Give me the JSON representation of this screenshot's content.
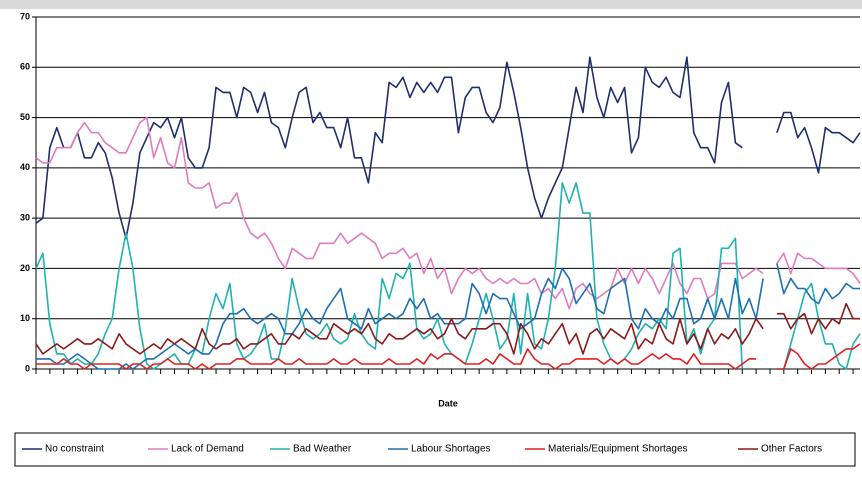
{
  "chart_data": {
    "type": "line",
    "x_label": "Date",
    "categories": [
      null,
      null,
      null,
      null,
      null,
      null,
      null,
      null,
      null,
      null,
      null,
      null,
      null,
      null,
      null,
      null,
      null,
      null,
      null,
      null,
      null,
      null,
      null,
      null,
      null,
      null,
      null,
      null,
      null,
      null,
      null,
      null,
      null,
      null,
      null,
      null,
      null,
      null,
      null,
      null,
      null,
      null,
      null,
      null,
      null,
      null,
      null,
      null,
      null,
      null,
      null,
      null,
      null,
      null,
      null,
      null,
      null,
      null,
      null,
      null,
      null,
      null,
      null,
      null,
      null,
      null,
      null,
      null,
      null,
      null,
      null,
      null,
      null,
      null,
      null,
      null,
      null,
      null,
      null,
      null,
      null,
      null,
      null,
      null,
      null,
      null,
      null,
      null,
      null,
      null,
      null,
      null,
      null,
      null,
      null,
      null,
      null,
      null,
      null,
      null,
      null,
      null,
      null,
      null,
      null,
      null,
      null,
      null,
      null,
      null,
      null,
      null,
      null,
      null,
      null,
      null,
      null,
      null,
      null,
      null
    ],
    "ylim": [
      0,
      70
    ],
    "yticks": [
      0,
      10,
      20,
      30,
      40,
      50,
      60,
      70
    ],
    "grid": true,
    "legend": "bottom",
    "series": [
      {
        "name": "No constraint",
        "color": "#1f2f6e",
        "values": [
          29,
          30,
          44,
          48,
          44,
          44,
          47,
          42,
          42,
          45,
          43,
          38,
          31,
          26,
          33,
          43,
          46,
          49,
          48,
          50,
          46,
          50,
          42,
          40,
          40,
          44,
          56,
          55,
          55,
          50,
          56,
          55,
          51,
          55,
          49,
          48,
          44,
          50,
          55,
          56,
          49,
          51,
          48,
          48,
          44,
          50,
          42,
          42,
          37,
          47,
          45,
          57,
          56,
          58,
          54,
          57,
          55,
          57,
          55,
          58,
          58,
          47,
          54,
          56,
          56,
          51,
          49,
          52,
          61,
          55,
          48,
          40,
          34,
          30,
          34,
          37,
          40,
          48,
          56,
          51,
          62,
          54,
          50,
          56,
          53,
          56,
          43,
          46,
          60,
          57,
          56,
          58,
          55,
          54,
          62,
          47,
          44,
          44,
          41,
          53,
          57,
          45,
          44,
          null,
          null,
          null,
          null,
          47,
          51,
          51,
          46,
          48,
          44,
          39,
          48,
          47,
          47,
          46,
          45,
          47
        ]
      },
      {
        "name": "Lack of Demand",
        "color": "#e07cc0",
        "values": [
          42,
          41,
          41,
          44,
          44,
          44,
          47,
          49,
          47,
          47,
          45,
          44,
          43,
          43,
          46,
          49,
          50,
          42,
          46,
          41,
          40,
          46,
          37,
          36,
          36,
          37,
          32,
          33,
          33,
          35,
          30,
          27,
          26,
          27,
          25,
          22,
          20,
          24,
          23,
          22,
          22,
          25,
          25,
          25,
          27,
          25,
          26,
          27,
          26,
          25,
          22,
          23,
          23,
          24,
          22,
          23,
          19,
          22,
          18,
          20,
          15,
          18,
          20,
          19,
          20,
          18,
          17,
          18,
          17,
          18,
          17,
          17,
          18,
          15,
          16,
          14,
          16,
          12,
          16,
          17,
          15,
          14,
          15,
          16,
          20,
          17,
          20,
          17,
          20,
          18,
          15,
          18,
          21,
          17,
          15,
          18,
          18,
          14,
          15,
          21,
          21,
          21,
          18,
          19,
          20,
          19,
          null,
          21,
          23,
          19,
          23,
          22,
          22,
          21,
          20,
          20,
          20,
          20,
          19,
          17
        ]
      },
      {
        "name": "Bad Weather",
        "color": "#20b2b2",
        "values": [
          20,
          23,
          9,
          3,
          3,
          1,
          2,
          1,
          1,
          3,
          7,
          10,
          20,
          27,
          20,
          8,
          1,
          0,
          1,
          2,
          3,
          1,
          1,
          4,
          3,
          10,
          15,
          12,
          17,
          5,
          2,
          3,
          5,
          9,
          2,
          2,
          8,
          18,
          12,
          7,
          6,
          7,
          9,
          6,
          5,
          6,
          11,
          7,
          5,
          4,
          18,
          14,
          19,
          18,
          21,
          8,
          6,
          7,
          10,
          5,
          3,
          2,
          1,
          5,
          10,
          15,
          10,
          4,
          6,
          15,
          3,
          15,
          5,
          4,
          10,
          20,
          37,
          33,
          37,
          31,
          31,
          10,
          5,
          2,
          1,
          2,
          4,
          7,
          9,
          8,
          10,
          8,
          23,
          24,
          5,
          8,
          3,
          8,
          10,
          24,
          24,
          26,
          0,
          null,
          null,
          null,
          null,
          0,
          0,
          5,
          10,
          15,
          17,
          10,
          5,
          5,
          1,
          0,
          5,
          7
        ]
      },
      {
        "name": "Labour Shortages",
        "color": "#1f6fb4",
        "values": [
          2,
          2,
          2,
          1,
          1,
          2,
          3,
          2,
          1,
          0,
          0,
          0,
          0,
          1,
          0,
          1,
          2,
          2,
          3,
          4,
          5,
          4,
          3,
          4,
          3,
          3,
          5,
          9,
          11,
          11,
          12,
          10,
          9,
          10,
          11,
          10,
          7,
          7,
          9,
          12,
          10,
          9,
          12,
          14,
          16,
          10,
          9,
          8,
          12,
          9,
          10,
          11,
          10,
          11,
          14,
          12,
          14,
          10,
          11,
          9,
          9,
          9,
          10,
          17,
          15,
          11,
          15,
          14,
          14,
          11,
          8,
          9,
          10,
          15,
          18,
          16,
          20,
          18,
          13,
          15,
          17,
          12,
          11,
          16,
          17,
          18,
          10,
          8,
          12,
          10,
          9,
          12,
          10,
          14,
          14,
          9,
          10,
          14,
          10,
          14,
          10,
          18,
          11,
          14,
          10,
          18,
          null,
          21,
          15,
          18,
          16,
          16,
          14,
          13,
          16,
          14,
          15,
          17,
          16,
          16
        ]
      },
      {
        "name": "Materials/Equipment Shortages",
        "color": "#e02020",
        "values": [
          1,
          1,
          1,
          1,
          2,
          1,
          1,
          0,
          1,
          1,
          1,
          1,
          1,
          0,
          1,
          1,
          0,
          1,
          1,
          2,
          1,
          1,
          1,
          0,
          1,
          0,
          1,
          1,
          1,
          2,
          2,
          1,
          1,
          1,
          1,
          2,
          1,
          1,
          2,
          1,
          1,
          1,
          1,
          2,
          1,
          1,
          2,
          1,
          1,
          1,
          1,
          2,
          1,
          1,
          1,
          2,
          1,
          3,
          2,
          3,
          3,
          2,
          1,
          1,
          1,
          2,
          1,
          3,
          2,
          1,
          1,
          4,
          2,
          1,
          1,
          0,
          1,
          1,
          2,
          2,
          2,
          2,
          1,
          2,
          1,
          2,
          1,
          1,
          2,
          3,
          2,
          3,
          2,
          2,
          1,
          3,
          1,
          1,
          1,
          1,
          1,
          0,
          1,
          2,
          2,
          null,
          null,
          0,
          0,
          4,
          3,
          1,
          0,
          1,
          1,
          2,
          3,
          4,
          4,
          5
        ]
      },
      {
        "name": "Other Factors",
        "color": "#8b1a1a",
        "values": [
          5,
          3,
          4,
          5,
          4,
          5,
          6,
          5,
          5,
          6,
          5,
          4,
          7,
          5,
          4,
          3,
          4,
          5,
          4,
          6,
          5,
          6,
          5,
          4,
          8,
          5,
          4,
          5,
          5,
          6,
          4,
          5,
          5,
          6,
          7,
          5,
          5,
          7,
          6,
          8,
          7,
          6,
          6,
          9,
          8,
          7,
          8,
          7,
          9,
          6,
          5,
          7,
          6,
          6,
          7,
          8,
          7,
          8,
          6,
          7,
          10,
          7,
          6,
          8,
          8,
          8,
          9,
          9,
          7,
          3,
          9,
          7,
          4,
          6,
          5,
          7,
          9,
          5,
          7,
          3,
          7,
          8,
          6,
          8,
          7,
          6,
          9,
          4,
          6,
          5,
          9,
          6,
          5,
          10,
          5,
          7,
          4,
          8,
          5,
          7,
          6,
          8,
          5,
          7,
          10,
          8,
          null,
          11,
          11,
          8,
          10,
          11,
          7,
          10,
          8,
          10,
          9,
          13,
          10,
          10
        ]
      }
    ]
  }
}
